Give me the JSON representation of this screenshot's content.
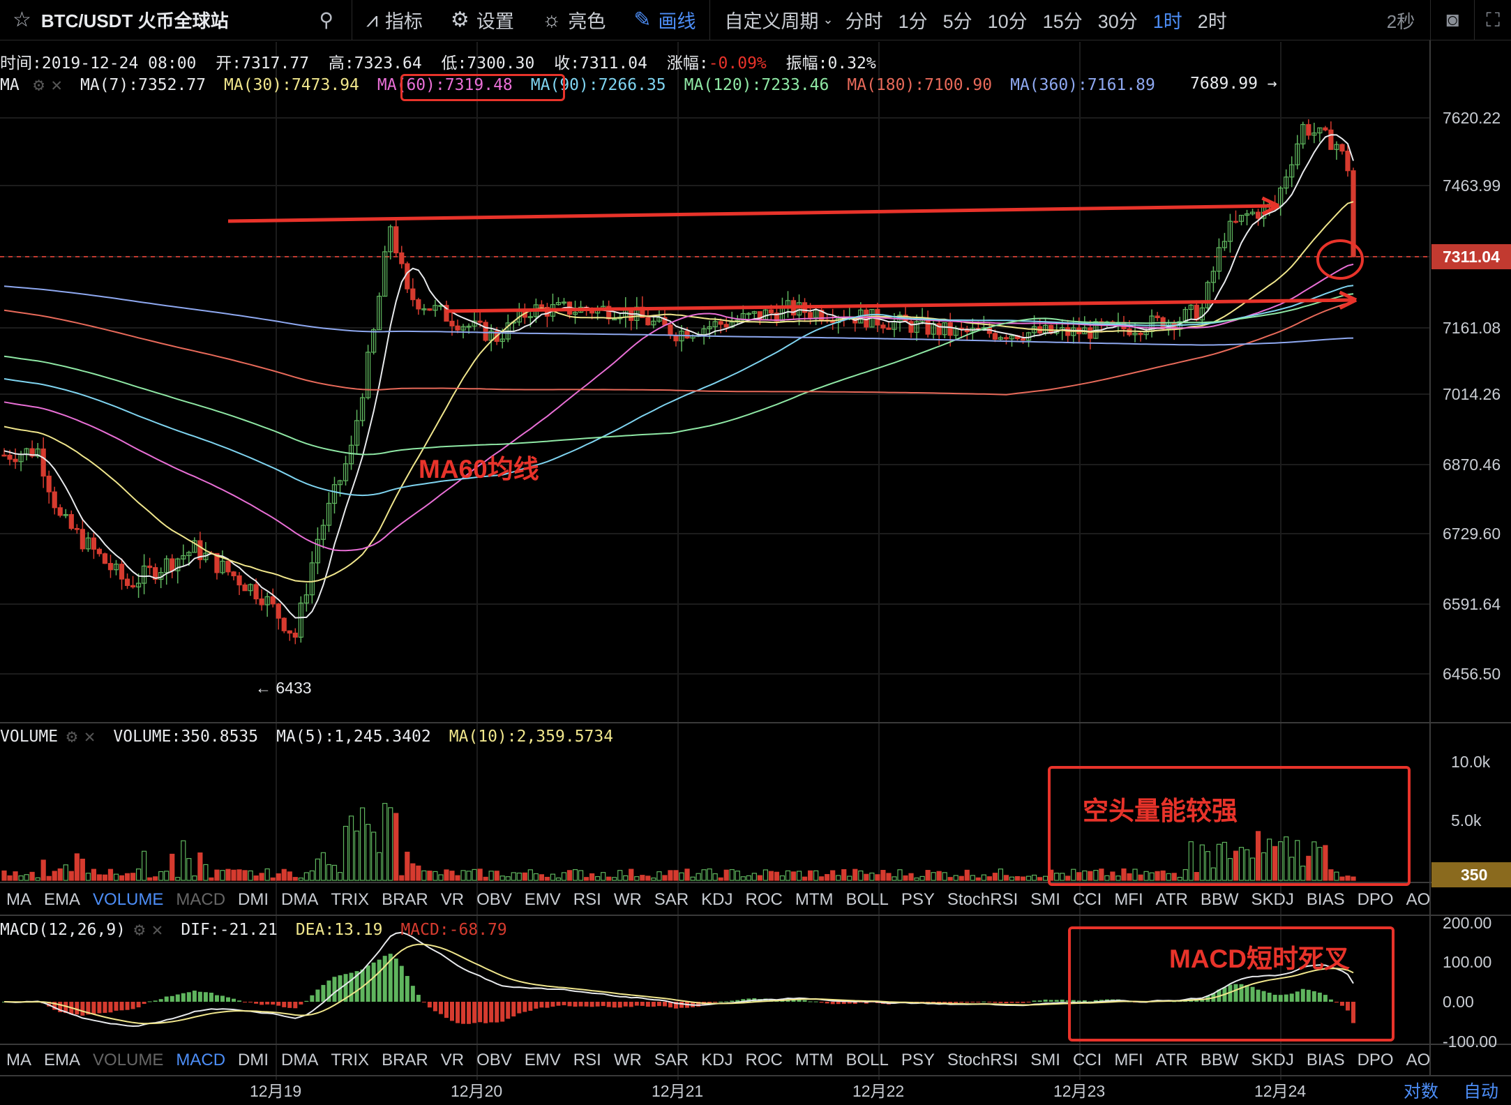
{
  "toolbar": {
    "symbol": "BTC/USDT 火币全球站",
    "indicators": "指标",
    "settings": "设置",
    "theme": "亮色",
    "draw": "画线",
    "custom_period": "自定义周期",
    "periods": [
      "分时",
      "1分",
      "5分",
      "10分",
      "15分",
      "30分",
      "1时",
      "2时"
    ],
    "active_period": "1时",
    "refresh": "2秒"
  },
  "ohlc": {
    "time": "时间:2019-12-24 08:00",
    "open": "开:7317.77",
    "high": "高:7323.64",
    "low": "低:7300.30",
    "close": "收:7311.04",
    "change_label": "涨幅:",
    "change": "-0.09%",
    "amplitude": "振幅:0.32%"
  },
  "ma_legend": {
    "label": "MA",
    "items": [
      {
        "text": "MA(7):7352.77",
        "color": "#e8eaed"
      },
      {
        "text": "MA(30):7473.94",
        "color": "#f0e68c"
      },
      {
        "text": "MA(60):7319.48",
        "color": "#e96fd6"
      },
      {
        "text": "MA(90):7266.35",
        "color": "#7fd4f0"
      },
      {
        "text": "MA(120):7233.46",
        "color": "#8fe8a5"
      },
      {
        "text": "MA(180):7100.90",
        "color": "#e86a5a"
      },
      {
        "text": "MA(360):7161.89",
        "color": "#8ea8f0"
      }
    ],
    "high_marker": "7689.99 →"
  },
  "price_axis": [
    "7620.22",
    "7463.99",
    "7311.04",
    "7161.08",
    "7014.26",
    "6870.46",
    "6729.60",
    "6591.64",
    "6456.50"
  ],
  "low_marker": "← 6433",
  "volume_legend": {
    "label": "VOLUME",
    "volume": "VOLUME:350.8535",
    "ma5": "MA(5):1,245.3402",
    "ma10": "MA(10):2,359.5734"
  },
  "volume_axis": [
    "10.0k",
    "5.0k",
    "350"
  ],
  "indicator_tabs": [
    "MA",
    "EMA",
    "VOLUME",
    "MACD",
    "DMI",
    "DMA",
    "TRIX",
    "BRAR",
    "VR",
    "OBV",
    "EMV",
    "RSI",
    "WR",
    "SAR",
    "KDJ",
    "ROC",
    "MTM",
    "BOLL",
    "PSY",
    "StochRSI",
    "SMI",
    "CCI",
    "MFI",
    "ATR",
    "BBW",
    "SKDJ",
    "BIAS",
    "DPO",
    "AO"
  ],
  "macd_legend": {
    "label": "MACD(12,26,9)",
    "dif": "DIF:-21.21",
    "dea": "DEA:13.19",
    "macd": "MACD:-68.79"
  },
  "macd_axis": [
    "200.00",
    "100.00",
    "0.00",
    "-100.00"
  ],
  "date_axis": [
    "12月19",
    "12月20",
    "12月21",
    "12月22",
    "12月23",
    "12月24"
  ],
  "bottom_right": [
    "对数",
    "自动"
  ],
  "annotations": {
    "ma60": "MA60均线",
    "volume": "空头量能较强",
    "macd": "MACD短时死叉"
  },
  "colors": {
    "up": "#5fb55e",
    "down": "#d63b2f",
    "accent": "#4d8ef7",
    "annotation": "#e8332a"
  }
}
